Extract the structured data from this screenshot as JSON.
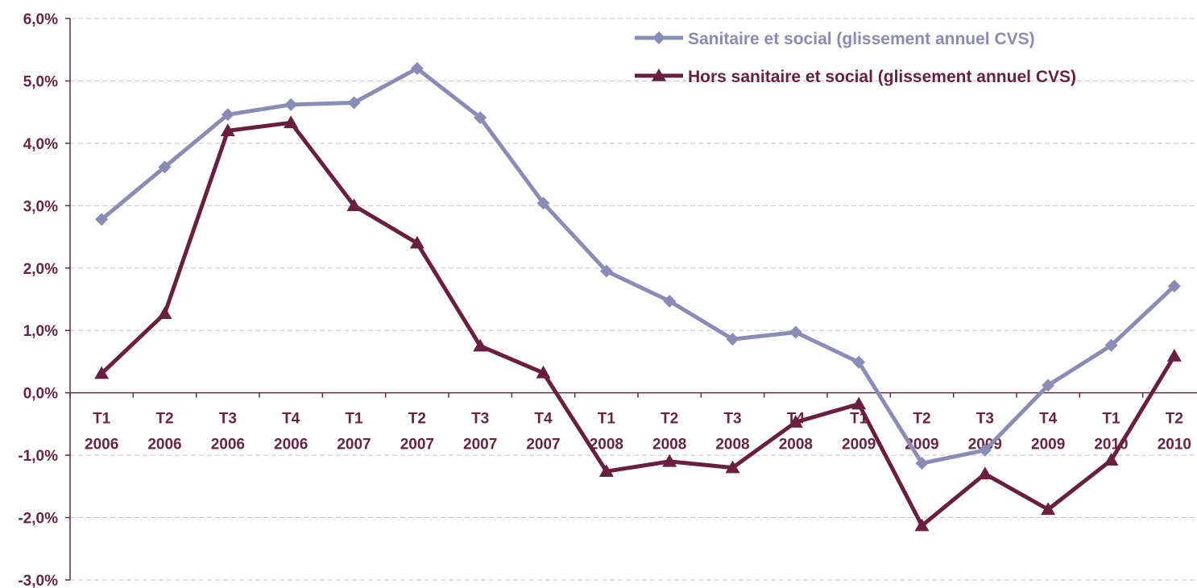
{
  "chart_data": {
    "type": "line",
    "title": "",
    "xlabel": "",
    "ylabel": "",
    "ylim": [
      -3.0,
      6.0
    ],
    "yticks": [
      "6,0%",
      "5,0%",
      "4,0%",
      "3,0%",
      "2,0%",
      "1,0%",
      "0,0%",
      "-1,0%",
      "-2,0%",
      "-3,0%"
    ],
    "ytick_values": [
      6,
      5,
      4,
      3,
      2,
      1,
      0,
      -1,
      -2,
      -3
    ],
    "categories": [
      {
        "q": "T1",
        "y": "2006"
      },
      {
        "q": "T2",
        "y": "2006"
      },
      {
        "q": "T3",
        "y": "2006"
      },
      {
        "q": "T4",
        "y": "2006"
      },
      {
        "q": "T1",
        "y": "2007"
      },
      {
        "q": "T2",
        "y": "2007"
      },
      {
        "q": "T3",
        "y": "2007"
      },
      {
        "q": "T4",
        "y": "2007"
      },
      {
        "q": "T1",
        "y": "2008"
      },
      {
        "q": "T2",
        "y": "2008"
      },
      {
        "q": "T3",
        "y": "2008"
      },
      {
        "q": "T4",
        "y": "2008"
      },
      {
        "q": "T1",
        "y": "2009"
      },
      {
        "q": "T2",
        "y": "2009"
      },
      {
        "q": "T3",
        "y": "2009"
      },
      {
        "q": "T4",
        "y": "2009"
      },
      {
        "q": "T1",
        "y": "2010"
      },
      {
        "q": "T2",
        "y": "2010"
      }
    ],
    "grid": true,
    "legend_position": "top-right",
    "series": [
      {
        "name": "Sanitaire et social (glissement annuel CVS)",
        "color": "#8b8bb8",
        "marker": "diamond",
        "values": [
          2.78,
          3.62,
          4.46,
          4.62,
          4.65,
          5.2,
          4.41,
          3.04,
          1.95,
          1.47,
          0.86,
          0.97,
          0.49,
          -1.13,
          -0.92,
          0.12,
          0.76,
          1.71
        ]
      },
      {
        "name": "Hors sanitaire et social (glissement annuel CVS)",
        "color": "#6b1f3e",
        "marker": "triangle",
        "values": [
          0.31,
          1.27,
          4.2,
          4.33,
          3.0,
          2.4,
          0.75,
          0.32,
          -1.26,
          -1.1,
          -1.2,
          -0.47,
          -0.18,
          -2.13,
          -1.3,
          -1.87,
          -1.08,
          0.59
        ]
      }
    ]
  }
}
